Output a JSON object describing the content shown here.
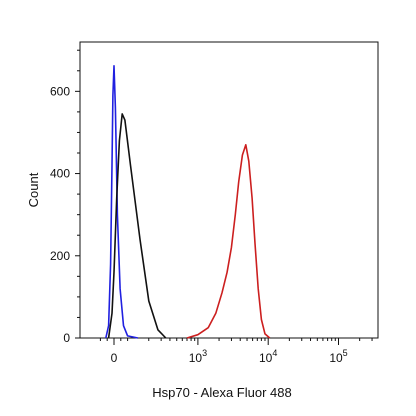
{
  "chart_data": {
    "type": "line",
    "title": "",
    "xlabel": "Hsp70 - Alexa Fluor 488",
    "ylabel": "Count",
    "x_scale": "biexponential",
    "xlim": [
      -300,
      200000
    ],
    "ylim": [
      0,
      720
    ],
    "y_ticks": [
      0,
      200,
      400,
      600
    ],
    "y_tick_labels": [
      "0",
      "200",
      "400",
      "600"
    ],
    "x_tick_labels": [
      {
        "value": 0,
        "label": "0"
      },
      {
        "value": 1000,
        "base": "10",
        "exp": "3"
      },
      {
        "value": 10000,
        "base": "10",
        "exp": "4"
      },
      {
        "value": 100000,
        "base": "10",
        "exp": "5"
      }
    ],
    "grid": false,
    "legend": "none",
    "series": [
      {
        "color": "#2020e0",
        "points": [
          [
            -60,
            0
          ],
          [
            -40,
            30
          ],
          [
            -25,
            180
          ],
          [
            -15,
            420
          ],
          [
            -8,
            590
          ],
          [
            0,
            662
          ],
          [
            10,
            560
          ],
          [
            25,
            300
          ],
          [
            45,
            120
          ],
          [
            70,
            30
          ],
          [
            100,
            5
          ],
          [
            140,
            0
          ]
        ]
      },
      {
        "color": "#111111",
        "points": [
          [
            -40,
            0
          ],
          [
            -15,
            60
          ],
          [
            0,
            160
          ],
          [
            20,
            340
          ],
          [
            40,
            480
          ],
          [
            60,
            545
          ],
          [
            80,
            530
          ],
          [
            110,
            420
          ],
          [
            150,
            240
          ],
          [
            200,
            90
          ],
          [
            270,
            20
          ],
          [
            350,
            0
          ]
        ]
      },
      {
        "color": "#cc1f1f",
        "points": [
          [
            700,
            0
          ],
          [
            1000,
            8
          ],
          [
            1400,
            25
          ],
          [
            1800,
            60
          ],
          [
            2200,
            110
          ],
          [
            2600,
            160
          ],
          [
            3000,
            220
          ],
          [
            3400,
            300
          ],
          [
            3800,
            380
          ],
          [
            4300,
            445
          ],
          [
            4800,
            470
          ],
          [
            5300,
            430
          ],
          [
            5900,
            340
          ],
          [
            6500,
            230
          ],
          [
            7200,
            120
          ],
          [
            8000,
            45
          ],
          [
            9000,
            10
          ],
          [
            10500,
            0
          ]
        ]
      }
    ]
  }
}
